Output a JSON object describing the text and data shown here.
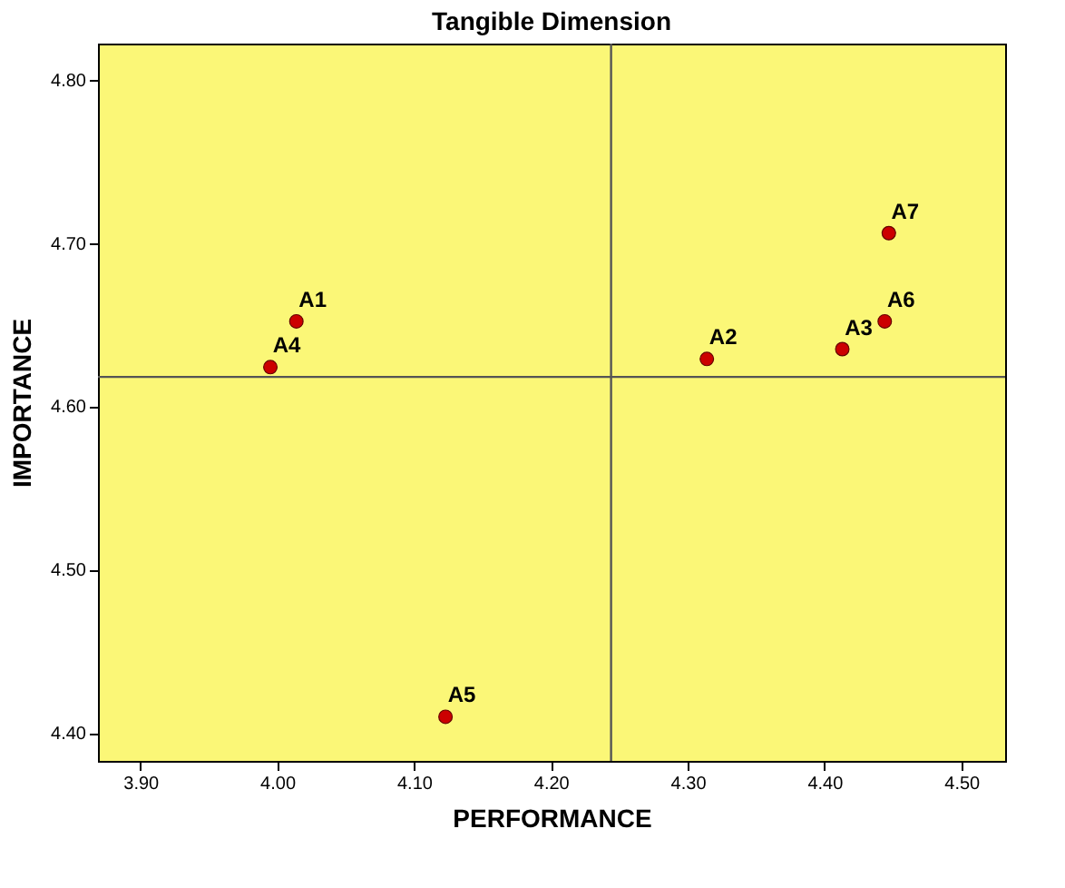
{
  "chart_data": {
    "type": "scatter",
    "title": "Tangible Dimension",
    "xlabel": "PERFORMANCE",
    "ylabel": "IMPORTANCE",
    "x": [
      4.014,
      4.314,
      4.413,
      3.995,
      4.123,
      4.444,
      4.447
    ],
    "series": [
      {
        "color": "#cc0000",
        "values": [
          4.652,
          4.629,
          4.635,
          4.624,
          4.41,
          4.652,
          4.706
        ]
      }
    ],
    "annotations": [
      {
        "text": "A1",
        "x": 4.014,
        "y": 4.652
      },
      {
        "text": "A2",
        "x": 4.314,
        "y": 4.629
      },
      {
        "text": "A3",
        "x": 4.413,
        "y": 4.635
      },
      {
        "text": "A4",
        "x": 3.995,
        "y": 4.624
      },
      {
        "text": "A5",
        "x": 4.123,
        "y": 4.41
      },
      {
        "text": "A6",
        "x": 4.444,
        "y": 4.652
      },
      {
        "text": "A7",
        "x": 4.447,
        "y": 4.706
      }
    ],
    "xlim": [
      3.869,
      4.532
    ],
    "ylim": [
      4.383,
      4.822
    ],
    "xticks": [
      {
        "value": 3.9,
        "label": "3.90"
      },
      {
        "value": 4.0,
        "label": "4.00"
      },
      {
        "value": 4.1,
        "label": "4.10"
      },
      {
        "value": 4.2,
        "label": "4.20"
      },
      {
        "value": 4.3,
        "label": "4.30"
      },
      {
        "value": 4.4,
        "label": "4.40"
      },
      {
        "value": 4.5,
        "label": "4.50"
      }
    ],
    "yticks": [
      {
        "value": 4.4,
        "label": "4.40"
      },
      {
        "value": 4.5,
        "label": "4.50"
      },
      {
        "value": 4.6,
        "label": "4.60"
      },
      {
        "value": 4.7,
        "label": "4.70"
      },
      {
        "value": 4.8,
        "label": "4.80"
      }
    ],
    "ref_lines": [
      {
        "axis": "x",
        "value": 4.244
      },
      {
        "axis": "y",
        "value": 4.618
      }
    ],
    "marker": "circle",
    "grid": false
  }
}
